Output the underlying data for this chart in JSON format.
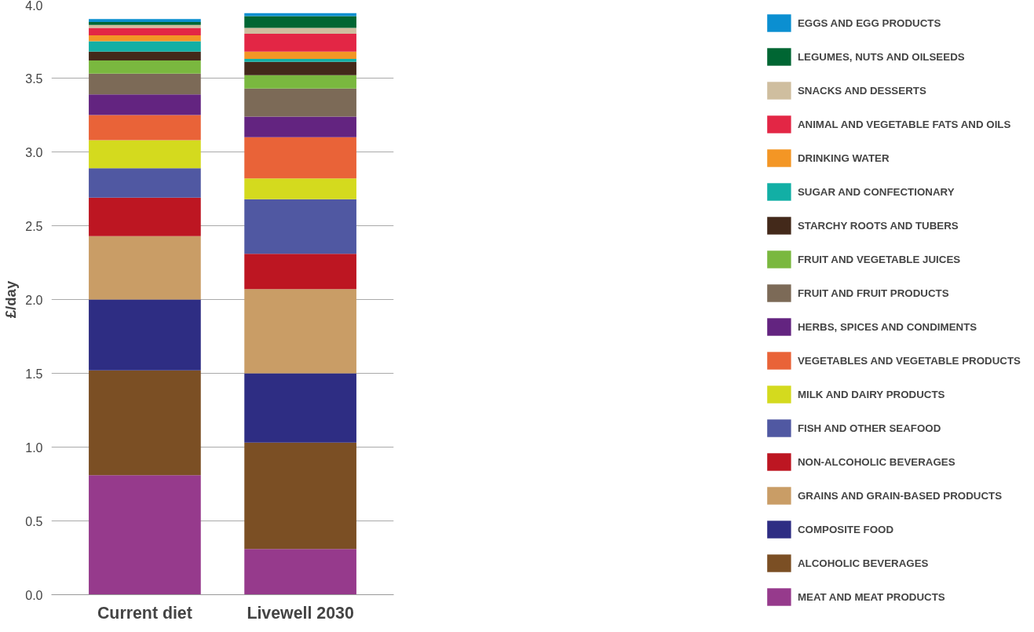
{
  "chart_data": {
    "type": "bar",
    "stacked": true,
    "ylabel": "£/day",
    "categories": [
      "Current diet",
      "Livewell 2030"
    ],
    "ylim": [
      0,
      4.0
    ],
    "yticks": [
      {
        "value": 0,
        "label": "0.0"
      },
      {
        "value": 0.5,
        "label": "0.5"
      },
      {
        "value": 1,
        "label": "1.0"
      },
      {
        "value": 1.5,
        "label": "1.5"
      },
      {
        "value": 2,
        "label": "2.0"
      },
      {
        "value": 2.5,
        "label": "2.5"
      },
      {
        "value": 3,
        "label": "3.0"
      },
      {
        "value": 3.5,
        "label": "3.5"
      },
      {
        "value": 4,
        "label": "4.0"
      }
    ],
    "grid": "y",
    "legend": "right",
    "series": [
      {
        "name": "MEAT AND MEAT PRODUCTS",
        "color": "#963a8c",
        "values": [
          0.81,
          0.31
        ]
      },
      {
        "name": "ALCOHOLIC BEVERAGES",
        "color": "#7b4f24",
        "values": [
          0.71,
          0.72
        ]
      },
      {
        "name": "COMPOSITE FOOD",
        "color": "#2e2d83",
        "values": [
          0.48,
          0.47
        ]
      },
      {
        "name": "GRAINS AND GRAIN-BASED PRODUCTS",
        "color": "#c99d66",
        "values": [
          0.43,
          0.57
        ]
      },
      {
        "name": "NON-ALCOHOLIC BEVERAGES",
        "color": "#bd1622",
        "values": [
          0.26,
          0.24
        ]
      },
      {
        "name": "FISH AND OTHER SEAFOOD",
        "color": "#5058a2",
        "values": [
          0.2,
          0.37
        ]
      },
      {
        "name": "MILK AND DAIRY PRODUCTS",
        "color": "#d4da1e",
        "values": [
          0.19,
          0.14
        ]
      },
      {
        "name": "VEGETABLES AND VEGETABLE PRODUCTS",
        "color": "#e96338",
        "values": [
          0.17,
          0.28
        ]
      },
      {
        "name": "HERBS, SPICES AND CONDIMENTS",
        "color": "#632480",
        "values": [
          0.14,
          0.14
        ]
      },
      {
        "name": "FRUIT AND FRUIT PRODUCTS",
        "color": "#7c6a57",
        "values": [
          0.14,
          0.19
        ]
      },
      {
        "name": "FRUIT AND VEGETABLE JUICES",
        "color": "#7ab83f",
        "values": [
          0.09,
          0.09
        ]
      },
      {
        "name": "STARCHY ROOTS AND TUBERS",
        "color": "#43291a",
        "values": [
          0.06,
          0.09
        ]
      },
      {
        "name": "SUGAR AND CONFECTIONARY",
        "color": "#12afa5",
        "values": [
          0.07,
          0.02
        ]
      },
      {
        "name": "DRINKING WATER",
        "color": "#f39625",
        "values": [
          0.04,
          0.05
        ]
      },
      {
        "name": "ANIMAL AND VEGETABLE FATS AND OILS",
        "color": "#e32645",
        "values": [
          0.05,
          0.12
        ]
      },
      {
        "name": "SNACKS AND DESSERTS",
        "color": "#cfbe9f",
        "values": [
          0.02,
          0.04
        ]
      },
      {
        "name": "LEGUMES, NUTS AND OILSEEDS",
        "color": "#006633",
        "values": [
          0.02,
          0.08
        ]
      },
      {
        "name": "EGGS AND EGG PRODUCTS",
        "color": "#0b8fd1",
        "values": [
          0.02,
          0.02
        ]
      }
    ]
  }
}
